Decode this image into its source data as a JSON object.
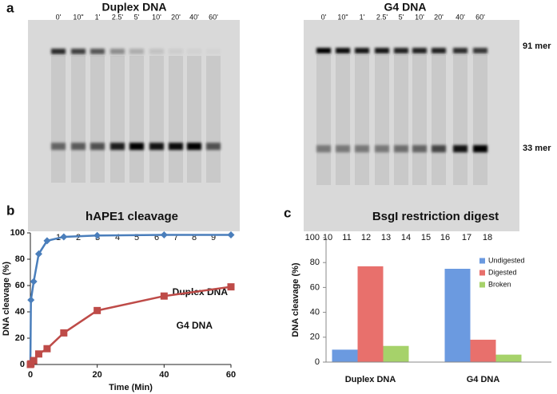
{
  "panel_labels": [
    "a",
    "b",
    "c"
  ],
  "gels": [
    {
      "title": "Duplex DNA",
      "times": [
        "0'",
        "10\"",
        "1'",
        "2.5'",
        "5'",
        "10'",
        "20'",
        "40'",
        "60'"
      ],
      "lanes": [
        "1",
        "2",
        "3",
        "4",
        "5",
        "6",
        "7",
        "8",
        "9"
      ]
    },
    {
      "title": "G4 DNA",
      "times": [
        "0'",
        "10\"",
        "1'",
        "2.5'",
        "5'",
        "10'",
        "20'",
        "40'",
        "60'"
      ],
      "lanes": [
        "10",
        "11",
        "12",
        "13",
        "14",
        "15",
        "16",
        "17",
        "18"
      ]
    }
  ],
  "markers": [
    "91 mer",
    "33 mer"
  ],
  "chart_data": [
    {
      "type": "line",
      "title": "hAPE1 cleavage",
      "x_label": "Time (Min)",
      "y_label": "DNA cleavage (%)",
      "x": [
        0,
        0.17,
        1,
        2.5,
        5,
        10,
        20,
        40,
        60
      ],
      "series": [
        {
          "name": "Duplex DNA",
          "color": "#4a7ebb",
          "marker": "diamond",
          "values": [
            0,
            49,
            63,
            84,
            94,
            97,
            98,
            98.5,
            98.5
          ]
        },
        {
          "name": "G4 DNA",
          "color": "#be4b48",
          "marker": "square",
          "values": [
            0,
            0.5,
            3,
            8,
            12,
            24,
            41,
            52,
            59
          ]
        }
      ],
      "xlim": [
        0,
        60
      ],
      "xticks": [
        0,
        20,
        40,
        60
      ],
      "ylim": [
        0,
        100
      ],
      "yticks": [
        0,
        20,
        40,
        60,
        80,
        100
      ]
    },
    {
      "type": "bar",
      "title": "BsgI restriction digest",
      "y_label": "DNA cleavage (%)",
      "categories": [
        "Duplex DNA",
        "G4 DNA"
      ],
      "series": [
        {
          "name": "Undigested",
          "color": "#6b9ae0",
          "values": [
            10,
            75
          ]
        },
        {
          "name": "Digested",
          "color": "#e8706c",
          "values": [
            77,
            18
          ]
        },
        {
          "name": "Broken",
          "color": "#a6d26a",
          "values": [
            13,
            6
          ]
        }
      ],
      "ylim": [
        0,
        100
      ],
      "yticks": [
        0,
        20,
        40,
        60,
        80,
        100
      ],
      "legend": "top-right"
    }
  ]
}
